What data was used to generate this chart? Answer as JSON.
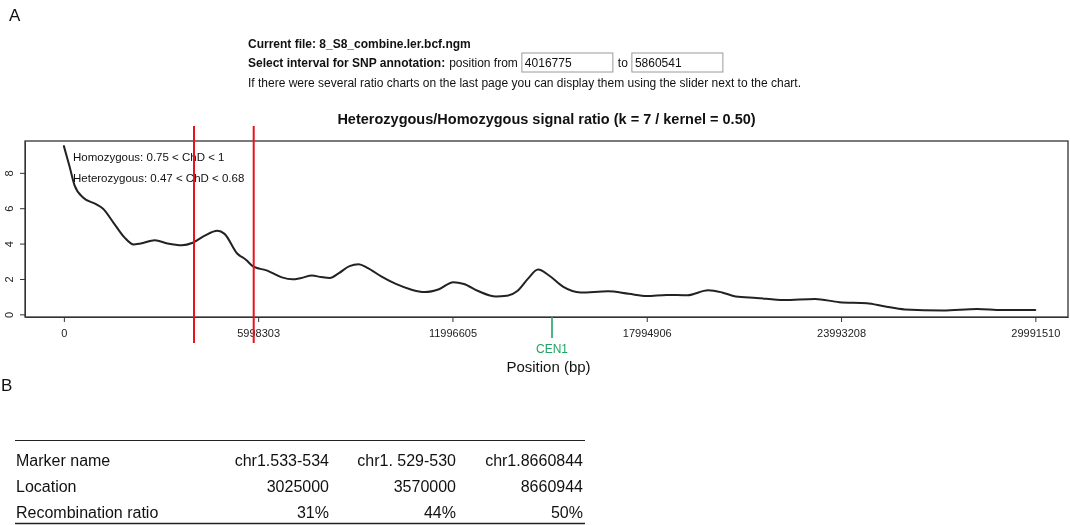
{
  "chart_data": [
    {
      "type": "line",
      "title": "Heterozygous/Homozygous signal ratio (k = 7 / kernel = 0.50)",
      "xlabel": "Position (bp)",
      "x": [
        0,
        170000,
        330000,
        610000,
        990000,
        1210000,
        1540000,
        1870000,
        2150000,
        2370000,
        2810000,
        3200000,
        3640000,
        3980000,
        4350000,
        4740000,
        4960000,
        5350000,
        5620000,
        5830000,
        6280000,
        6730000,
        7060000,
        7330000,
        7660000,
        7940000,
        8210000,
        8490000,
        8820000,
        9100000,
        9370000,
        9810000,
        10250000,
        10690000,
        11140000,
        11580000,
        12020000,
        12350000,
        12790000,
        13340000,
        13670000,
        14000000,
        14330000,
        14640000,
        14990000,
        15420000,
        15950000,
        16800000,
        17440000,
        18000000,
        18610000,
        19250000,
        19890000,
        20320000,
        20740000,
        21380000,
        22230000,
        23190000,
        23940000,
        24790000,
        25320000,
        25960000,
        27140000,
        28200000,
        28950000,
        29990000
      ],
      "series": [
        {
          "color": "#222222",
          "values": [
            9.51,
            8.4,
            7.29,
            6.58,
            6.23,
            5.97,
            5.16,
            4.35,
            3.95,
            4.01,
            4.19,
            4.01,
            3.91,
            4.05,
            4.45,
            4.72,
            4.55,
            3.44,
            3.09,
            2.73,
            2.47,
            2.09,
            1.98,
            2.06,
            2.19,
            2.11,
            2.06,
            2.33,
            2.73,
            2.83,
            2.63,
            2.13,
            1.72,
            1.42,
            1.26,
            1.42,
            1.82,
            1.72,
            1.32,
            1.01,
            1.05,
            1.32,
            2.02,
            2.53,
            2.18,
            1.55,
            1.24,
            1.3,
            1.16,
            1.04,
            1.1,
            1.08,
            1.36,
            1.24,
            1.01,
            0.93,
            0.81,
            0.87,
            0.69,
            0.63,
            0.46,
            0.28,
            0.22,
            0.3,
            0.24,
            0.24
          ]
        }
      ],
      "xlim": [
        -1200000,
        31000000
      ],
      "ylim": [
        -0.15,
        9.8
      ],
      "xticks": [
        0,
        5998303,
        11996605,
        17994906,
        23993208,
        29991510
      ],
      "yticks": [
        0,
        2,
        4,
        6,
        8
      ],
      "ref_lines": [
        {
          "axis": "x",
          "value": 4016775,
          "color": "#e8141c"
        },
        {
          "axis": "x",
          "value": 5860541,
          "color": "#e8141c"
        },
        {
          "axis": "x",
          "value": 15070000,
          "label": "CEN1",
          "color": "#1fa463"
        }
      ],
      "annotations": [
        "A",
        "Current file: 8_S8_combine.ler.bcf.ngm",
        "Select interval for SNP annotation:",
        "position from",
        "4016775",
        "to",
        "5860541",
        "If there were several ratio charts on the last page you can display them using the slider next to the chart.",
        "Homozygous: 0.75 < ChD < 1",
        "Heterozygous: 0.47 < ChD < 0.68"
      ]
    },
    {
      "type": "other",
      "xlabel": "Marker name",
      "categories": [
        "chr1.533-534",
        "chr1. 529-530",
        "chr1.8660844"
      ],
      "series": [
        {
          "name": "Location",
          "values": [
            3025000,
            3570000,
            8660944
          ]
        },
        {
          "name": "Recombination ratio",
          "values": [
            31,
            44,
            50
          ],
          "value_labels": [
            "31%",
            "44%",
            "50%"
          ]
        }
      ],
      "data_labels": true,
      "annotations": [
        "B"
      ]
    }
  ]
}
